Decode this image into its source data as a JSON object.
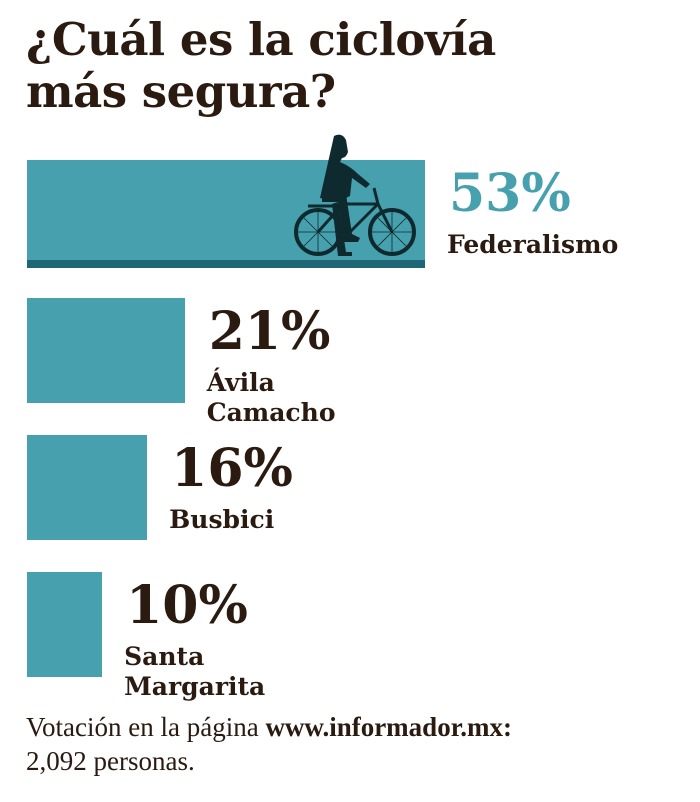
{
  "title_line1": "¿Cuál es la ciclovía",
  "title_line2": "más segura?",
  "colors": {
    "bar": "#46a0ad",
    "bar_strip": "#1f6777",
    "highlight_text": "#46a0ad",
    "text": "#2a1a10"
  },
  "chart_data": {
    "type": "bar",
    "orientation": "horizontal",
    "title": "¿Cuál es la ciclovía más segura?",
    "categories": [
      "Federalismo",
      "Ávila Camacho",
      "Busbici",
      "Santa Margarita"
    ],
    "values": [
      53,
      21,
      16,
      10
    ],
    "value_labels": [
      "53%",
      "21%",
      "16%",
      "10%"
    ],
    "unit": "%",
    "highlight": "Federalismo",
    "decoration_icon": "cyclist-icon"
  },
  "footer": {
    "text": "Votación en la página ",
    "site": "www.informador.mx:",
    "count": "2,092 personas."
  }
}
